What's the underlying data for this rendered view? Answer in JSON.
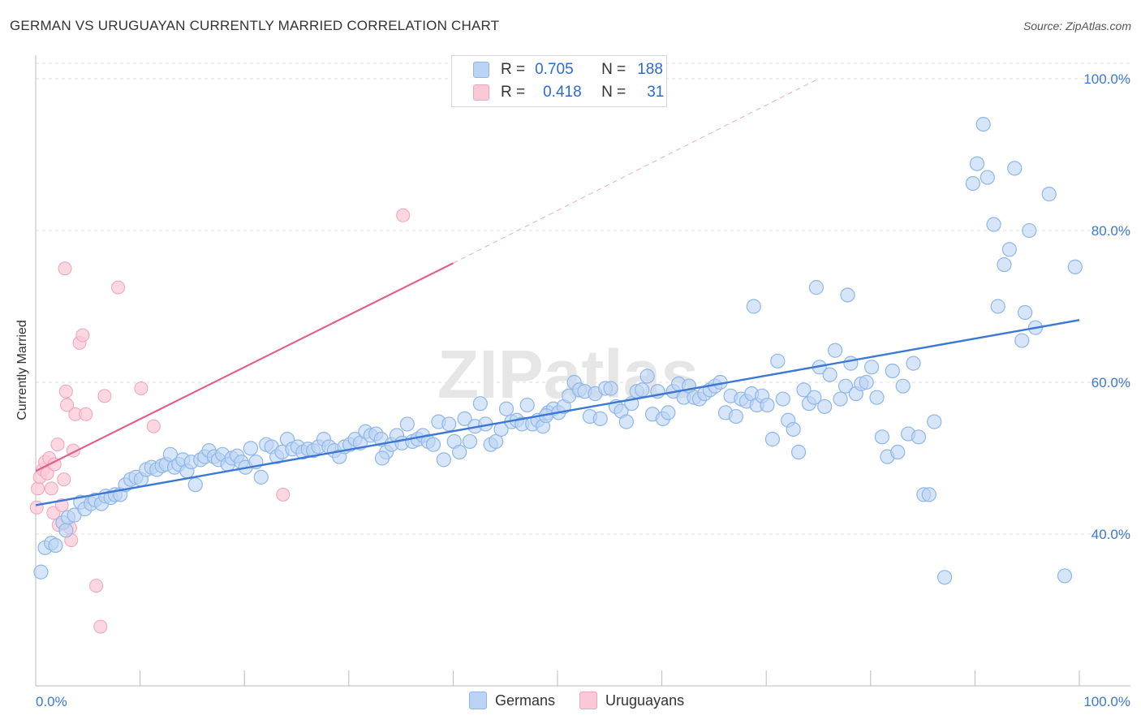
{
  "title": "GERMAN VS URUGUAYAN CURRENTLY MARRIED CORRELATION CHART",
  "source": "Source: ZipAtlas.com",
  "watermark": "ZIPatlas",
  "legend": {
    "rows": [
      {
        "r_label": "R =",
        "r_value": "0.705",
        "n_label": "N =",
        "n_value": "188",
        "color": "#8fb6ea",
        "fill": "#bcd4f4"
      },
      {
        "r_label": "R =",
        "r_value": "0.418",
        "n_label": "N =",
        "n_value": "31",
        "color": "#f2a2bc",
        "fill": "#f9c9d7"
      }
    ]
  },
  "bottom_legend": [
    {
      "label": "Germans",
      "fill": "#bcd4f4",
      "border": "#8fb6ea"
    },
    {
      "label": "Uruguayans",
      "fill": "#f9c9d7",
      "border": "#f2a2bc"
    }
  ],
  "chart_data": {
    "type": "scatter",
    "title": "GERMAN VS URUGUAYAN CURRENTLY MARRIED CORRELATION CHART",
    "xlabel": "",
    "ylabel": "Currently Married",
    "xlim": [
      0,
      100
    ],
    "ylim": [
      20,
      100
    ],
    "x_tick_labels": [
      "0.0%",
      "100.0%"
    ],
    "y_ticks": [
      40,
      60,
      80,
      100
    ],
    "y_tick_labels": [
      "40.0%",
      "60.0%",
      "80.0%",
      "100.0%"
    ],
    "series": [
      {
        "name": "Germans",
        "color": "#3a78d4",
        "fill": "#bcd4f4",
        "stroke": "#8fb6ea",
        "trend": {
          "x": [
            0,
            100
          ],
          "y": [
            43.8,
            68.2
          ]
        },
        "points": [
          [
            0.5,
            35
          ],
          [
            0.9,
            38.2
          ],
          [
            1.5,
            38.8
          ],
          [
            1.9,
            38.5
          ],
          [
            2.6,
            41.5
          ],
          [
            2.9,
            40.5
          ],
          [
            3.1,
            42.2
          ],
          [
            3.7,
            42.5
          ],
          [
            4.3,
            44.2
          ],
          [
            4.7,
            43.3
          ],
          [
            5.3,
            44
          ],
          [
            5.7,
            44.5
          ],
          [
            6.3,
            44
          ],
          [
            6.7,
            45
          ],
          [
            7.2,
            44.8
          ],
          [
            7.6,
            45.2
          ],
          [
            8.1,
            45.2
          ],
          [
            8.6,
            46.5
          ],
          [
            9.1,
            47.2
          ],
          [
            9.6,
            47.5
          ],
          [
            10.1,
            47.2
          ],
          [
            10.6,
            48.5
          ],
          [
            11.1,
            48.8
          ],
          [
            11.6,
            48.5
          ],
          [
            12.1,
            49
          ],
          [
            12.5,
            49.2
          ],
          [
            12.9,
            50.5
          ],
          [
            13.3,
            48.8
          ],
          [
            13.7,
            49.2
          ],
          [
            14.1,
            49.8
          ],
          [
            14.5,
            48.3
          ],
          [
            14.9,
            49.5
          ],
          [
            15.3,
            46.5
          ],
          [
            15.8,
            49.8
          ],
          [
            16.2,
            50.2
          ],
          [
            16.6,
            51
          ],
          [
            17.1,
            50.2
          ],
          [
            17.5,
            49.8
          ],
          [
            17.9,
            50.5
          ],
          [
            18.4,
            49.2
          ],
          [
            18.8,
            50
          ],
          [
            19.3,
            50.3
          ],
          [
            19.7,
            49.5
          ],
          [
            20.1,
            48.8
          ],
          [
            20.6,
            51.3
          ],
          [
            21.1,
            49.5
          ],
          [
            21.6,
            47.5
          ],
          [
            22.1,
            51.8
          ],
          [
            22.6,
            51.5
          ],
          [
            23.1,
            50.2
          ],
          [
            23.6,
            50.8
          ],
          [
            24.1,
            52.5
          ],
          [
            24.6,
            51.2
          ],
          [
            25.1,
            51.5
          ],
          [
            25.6,
            50.8
          ],
          [
            26.1,
            51.2
          ],
          [
            26.6,
            51
          ],
          [
            27.1,
            51.5
          ],
          [
            27.6,
            52.5
          ],
          [
            28.1,
            51.5
          ],
          [
            28.6,
            51
          ],
          [
            29.1,
            50.2
          ],
          [
            29.6,
            51.5
          ],
          [
            30.1,
            51.8
          ],
          [
            30.6,
            52.5
          ],
          [
            31.1,
            52
          ],
          [
            31.6,
            53.5
          ],
          [
            32.1,
            53
          ],
          [
            32.6,
            53.2
          ],
          [
            33.1,
            52.5
          ],
          [
            33.6,
            50.8
          ],
          [
            34.1,
            51.8
          ],
          [
            34.6,
            53
          ],
          [
            35.1,
            52
          ],
          [
            35.6,
            54.5
          ],
          [
            36.1,
            52.2
          ],
          [
            36.6,
            52.5
          ],
          [
            37.1,
            53
          ],
          [
            37.6,
            52.2
          ],
          [
            38.1,
            51.8
          ],
          [
            38.6,
            54.8
          ],
          [
            39.1,
            49.8
          ],
          [
            39.6,
            54.5
          ],
          [
            40.1,
            52.2
          ],
          [
            40.6,
            50.8
          ],
          [
            41.1,
            55.2
          ],
          [
            41.6,
            52.2
          ],
          [
            42.1,
            54.2
          ],
          [
            42.6,
            57.2
          ],
          [
            43.1,
            54.5
          ],
          [
            43.6,
            51.8
          ],
          [
            44.1,
            52.2
          ],
          [
            44.6,
            53.8
          ],
          [
            45.1,
            56.5
          ],
          [
            45.6,
            54.8
          ],
          [
            46.1,
            55
          ],
          [
            46.6,
            54.5
          ],
          [
            47.1,
            57
          ],
          [
            47.6,
            54.5
          ],
          [
            48.1,
            55
          ],
          [
            48.6,
            54.2
          ],
          [
            49.1,
            56
          ],
          [
            49.6,
            56.5
          ],
          [
            50.1,
            56
          ],
          [
            50.6,
            56.8
          ],
          [
            51.1,
            58.2
          ],
          [
            51.6,
            60
          ],
          [
            52.1,
            59
          ],
          [
            52.6,
            58.8
          ],
          [
            53.1,
            55.5
          ],
          [
            53.6,
            58.5
          ],
          [
            54.1,
            55.2
          ],
          [
            54.6,
            59.2
          ],
          [
            55.1,
            59.2
          ],
          [
            55.6,
            56.8
          ],
          [
            56.1,
            56.2
          ],
          [
            56.6,
            54.8
          ],
          [
            57.1,
            57.2
          ],
          [
            57.6,
            58.8
          ],
          [
            58.1,
            59
          ],
          [
            58.6,
            60.8
          ],
          [
            59.1,
            55.8
          ],
          [
            59.6,
            58.8
          ],
          [
            60.1,
            55.2
          ],
          [
            60.6,
            56
          ],
          [
            61.1,
            58.8
          ],
          [
            61.6,
            59.8
          ],
          [
            62.1,
            58
          ],
          [
            62.6,
            59.5
          ],
          [
            63.1,
            58
          ],
          [
            63.6,
            57.8
          ],
          [
            64.1,
            58.5
          ],
          [
            64.6,
            59
          ],
          [
            65.1,
            59.5
          ],
          [
            65.6,
            60
          ],
          [
            66.1,
            56
          ],
          [
            66.6,
            58.2
          ],
          [
            67.1,
            55.5
          ],
          [
            67.6,
            57.8
          ],
          [
            68.1,
            57.5
          ],
          [
            68.6,
            58.5
          ],
          [
            69.1,
            57
          ],
          [
            69.6,
            58.2
          ],
          [
            70.1,
            57
          ],
          [
            70.6,
            52.5
          ],
          [
            71.1,
            62.8
          ],
          [
            71.6,
            57.8
          ],
          [
            72.1,
            55
          ],
          [
            72.6,
            53.8
          ],
          [
            73.1,
            50.8
          ],
          [
            73.6,
            59
          ],
          [
            74.1,
            57.2
          ],
          [
            74.6,
            58
          ],
          [
            75.1,
            62
          ],
          [
            75.6,
            56.8
          ],
          [
            76.1,
            61
          ],
          [
            76.6,
            64.2
          ],
          [
            77.1,
            57.8
          ],
          [
            77.6,
            59.5
          ],
          [
            78.1,
            62.5
          ],
          [
            78.6,
            58.5
          ],
          [
            79.1,
            59.8
          ],
          [
            79.6,
            60
          ],
          [
            80.1,
            62
          ],
          [
            80.6,
            58
          ],
          [
            81.1,
            52.8
          ],
          [
            81.6,
            50.2
          ],
          [
            82.1,
            61.5
          ],
          [
            82.6,
            50.8
          ],
          [
            83.1,
            59.5
          ],
          [
            83.6,
            53.2
          ],
          [
            84.1,
            62.5
          ],
          [
            84.6,
            52.8
          ],
          [
            85.1,
            45.2
          ],
          [
            85.6,
            45.2
          ],
          [
            86.1,
            54.8
          ],
          [
            87.1,
            34.3
          ],
          [
            68.8,
            70
          ],
          [
            74.8,
            72.5
          ],
          [
            77.8,
            71.5
          ],
          [
            89.8,
            86.2
          ],
          [
            90.2,
            88.8
          ],
          [
            90.8,
            94
          ],
          [
            91.2,
            87
          ],
          [
            91.8,
            80.8
          ],
          [
            92.2,
            70
          ],
          [
            92.8,
            75.5
          ],
          [
            93.3,
            77.5
          ],
          [
            93.8,
            88.2
          ],
          [
            94.5,
            65.5
          ],
          [
            94.8,
            69.2
          ],
          [
            95.2,
            80
          ],
          [
            95.8,
            67.2
          ],
          [
            97.1,
            84.8
          ],
          [
            99.6,
            75.2
          ],
          [
            33.2,
            50
          ],
          [
            48.9,
            55.6
          ],
          [
            98.6,
            34.5
          ]
        ]
      },
      {
        "name": "Uruguayans",
        "color": "#e0608c",
        "fill": "#f9c9d7",
        "stroke": "#f2a2bc",
        "trend": {
          "x": [
            0,
            40
          ],
          "y": [
            48.3,
            75.7
          ],
          "dashed_to": {
            "x": 75,
            "y": 100
          }
        },
        "points": [
          [
            0.1,
            43.5
          ],
          [
            0.2,
            46
          ],
          [
            0.4,
            47.5
          ],
          [
            0.7,
            48.5
          ],
          [
            0.9,
            49.5
          ],
          [
            1.1,
            48
          ],
          [
            1.3,
            50
          ],
          [
            1.5,
            46
          ],
          [
            1.7,
            42.8
          ],
          [
            1.8,
            49.2
          ],
          [
            2.1,
            51.8
          ],
          [
            2.2,
            41.2
          ],
          [
            2.5,
            43.8
          ],
          [
            2.7,
            47.2
          ],
          [
            2.9,
            58.8
          ],
          [
            3.0,
            57
          ],
          [
            3.3,
            40.8
          ],
          [
            3.4,
            39.2
          ],
          [
            3.6,
            51
          ],
          [
            3.8,
            55.8
          ],
          [
            4.2,
            65.2
          ],
          [
            4.5,
            66.2
          ],
          [
            4.8,
            55.8
          ],
          [
            2.8,
            75
          ],
          [
            5.8,
            33.2
          ],
          [
            6.2,
            27.8
          ],
          [
            6.6,
            58.2
          ],
          [
            7.9,
            72.5
          ],
          [
            10.1,
            59.2
          ],
          [
            11.3,
            54.2
          ],
          [
            23.7,
            45.2
          ],
          [
            35.2,
            82
          ]
        ]
      }
    ]
  }
}
